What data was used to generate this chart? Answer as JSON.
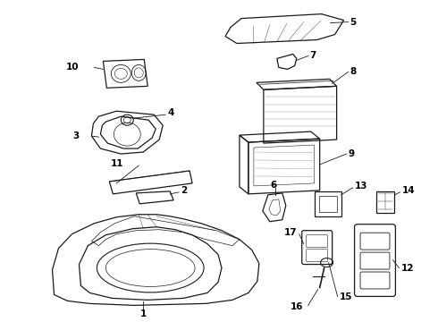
{
  "background_color": "#ffffff",
  "line_color": "#1a1a1a",
  "label_color": "#000000",
  "figsize": [
    4.9,
    3.6
  ],
  "dpi": 100,
  "label_fontsize": 7.5,
  "label_fontweight": "bold"
}
